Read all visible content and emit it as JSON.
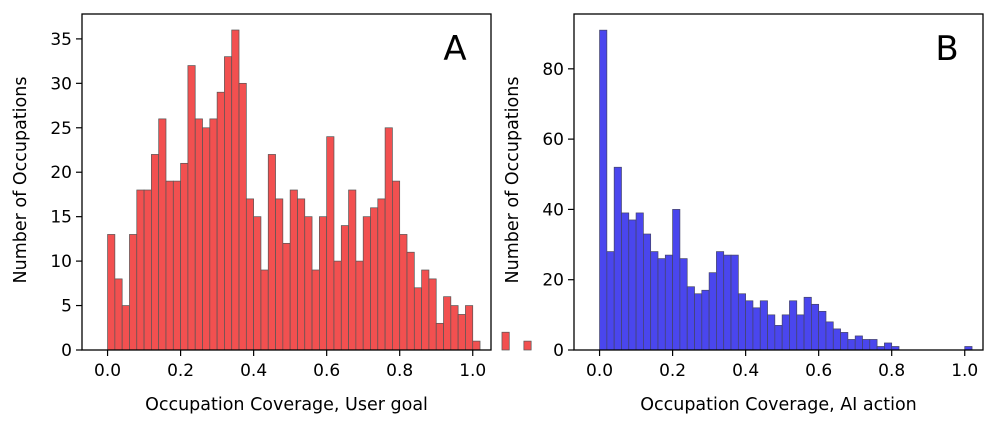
{
  "chart_data": [
    {
      "type": "bar",
      "panel_label": "A",
      "title": "",
      "xlabel": "Occupation Coverage, User goal",
      "ylabel": "Number of Occupations",
      "xlim": [
        -0.07,
        1.05
      ],
      "ylim": [
        0,
        37.8
      ],
      "x_ticks": [
        0.0,
        0.2,
        0.4,
        0.6,
        0.8,
        1.0
      ],
      "x_tick_labels": [
        "0.0",
        "0.2",
        "0.4",
        "0.6",
        "0.8",
        "1.0"
      ],
      "y_ticks": [
        0,
        5,
        10,
        15,
        20,
        25,
        30,
        35
      ],
      "y_tick_labels": [
        "0",
        "5",
        "10",
        "15",
        "20",
        "25",
        "30",
        "35"
      ],
      "bin_start": 0.0,
      "bin_width": 0.02,
      "values": [
        13,
        8,
        5,
        13,
        18,
        18,
        22,
        26,
        19,
        19,
        21,
        32,
        26,
        25,
        26,
        29,
        33,
        36,
        30,
        17,
        15,
        9,
        22,
        17,
        12,
        18,
        17,
        15,
        9,
        15,
        24,
        10,
        14,
        18,
        10,
        15,
        16,
        17,
        25,
        19,
        13,
        11,
        7,
        9,
        8,
        3,
        6,
        5,
        4,
        5,
        1,
        0,
        0,
        0,
        2,
        0,
        0,
        1
      ],
      "bar_color": "#f25050",
      "edge_color": "#555555"
    },
    {
      "type": "bar",
      "panel_label": "B",
      "title": "",
      "xlabel": "Occupation Coverage, AI action",
      "ylabel": "Number of Occupations",
      "xlim": [
        -0.07,
        1.05
      ],
      "ylim": [
        0,
        95.6
      ],
      "x_ticks": [
        0.0,
        0.2,
        0.4,
        0.6,
        0.8,
        1.0
      ],
      "x_tick_labels": [
        "0.0",
        "0.2",
        "0.4",
        "0.6",
        "0.8",
        "1.0"
      ],
      "y_ticks": [
        0,
        20,
        40,
        60,
        80
      ],
      "y_tick_labels": [
        "0",
        "20",
        "40",
        "60",
        "80"
      ],
      "bin_start": 0.0,
      "bin_width": 0.02,
      "values": [
        91,
        28,
        52,
        39,
        37,
        39,
        33,
        28,
        26,
        27,
        40,
        26,
        18,
        16,
        17,
        22,
        28,
        27,
        27,
        16,
        14,
        12,
        14,
        10,
        7,
        10,
        14,
        10,
        15,
        13,
        11,
        8,
        6,
        5,
        3,
        4,
        3,
        3,
        1,
        2,
        1,
        0,
        0,
        0,
        0,
        0,
        0,
        0,
        0,
        0,
        1
      ],
      "bar_color": "#4a46ee",
      "edge_color": "#444466"
    }
  ]
}
